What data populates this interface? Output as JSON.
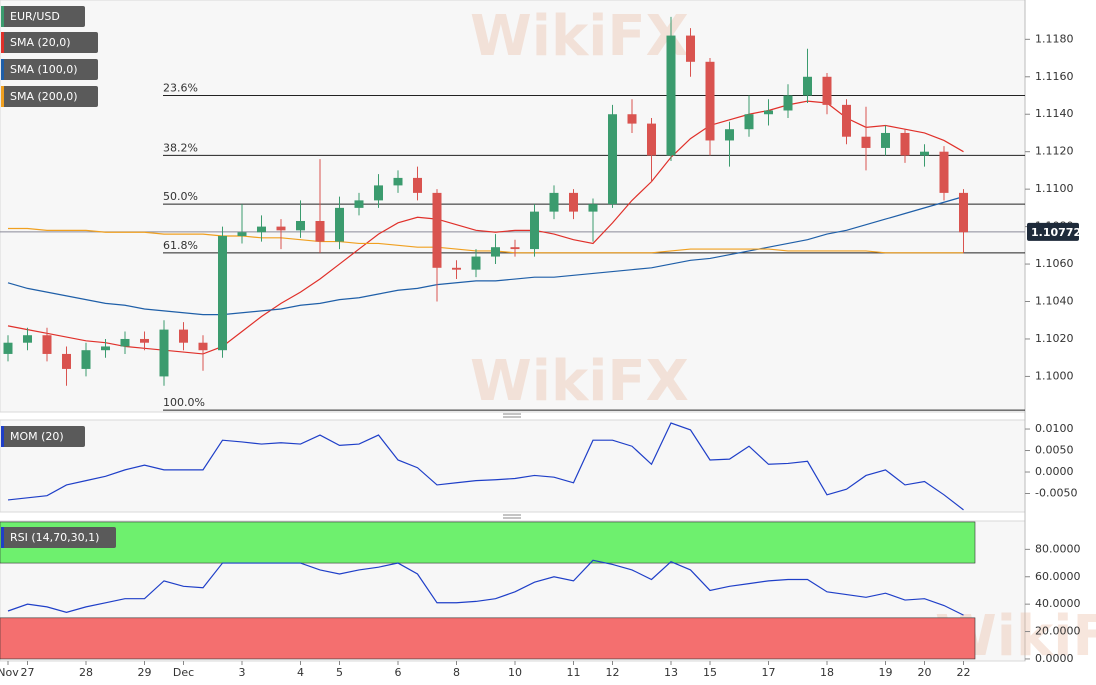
{
  "watermark": "WikiFX",
  "chart_data": [
    {
      "type": "candlestick",
      "symbol": "EUR/USD",
      "up_color": "#3b9b6e",
      "down_color": "#d9534f",
      "categories": [
        "Nov",
        "27",
        null,
        null,
        "28",
        null,
        null,
        "29",
        null,
        "Dec",
        null,
        null,
        "3",
        null,
        null,
        "4",
        null,
        "5",
        null,
        null,
        "6",
        null,
        null,
        "8",
        null,
        null,
        "10",
        null,
        null,
        "11",
        null,
        "12",
        null,
        null,
        "13",
        null,
        "15",
        null,
        null,
        "17",
        null,
        null,
        "18",
        null,
        null,
        "19",
        null,
        "20",
        null,
        "22"
      ],
      "open": [
        1.1012,
        1.1018,
        1.1022,
        1.1012,
        1.1004,
        1.1014,
        1.1016,
        1.102,
        1.1,
        1.1025,
        1.1018,
        1.1014,
        1.1075,
        1.1077,
        1.108,
        1.1078,
        1.1083,
        1.1072,
        1.109,
        1.1094,
        1.1102,
        1.1106,
        1.1098,
        1.1058,
        1.1057,
        1.1064,
        1.1069,
        1.1068,
        1.1088,
        1.1098,
        1.1088,
        1.1092,
        1.114,
        1.1135,
        1.1118,
        1.1182,
        1.1168,
        1.1126,
        1.1132,
        1.114,
        1.1142,
        1.115,
        1.116,
        1.1145,
        1.1128,
        1.1122,
        1.113,
        1.1118,
        1.112,
        1.1098
      ],
      "high": [
        1.1022,
        1.1026,
        1.1026,
        1.1016,
        1.1018,
        1.102,
        1.1024,
        1.1024,
        1.103,
        1.1029,
        1.1022,
        1.108,
        1.1092,
        1.1086,
        1.1084,
        1.1094,
        1.1116,
        1.1096,
        1.1098,
        1.1108,
        1.111,
        1.1112,
        1.11,
        1.1062,
        1.1068,
        1.1076,
        1.1073,
        1.1092,
        1.1102,
        1.11,
        1.1095,
        1.1145,
        1.1148,
        1.1138,
        1.1192,
        1.1186,
        1.117,
        1.1136,
        1.115,
        1.1148,
        1.1156,
        1.1175,
        1.1162,
        1.1148,
        1.1144,
        1.1134,
        1.1132,
        1.1124,
        1.1123,
        1.11
      ],
      "low": [
        1.1008,
        1.1014,
        1.1008,
        1.0995,
        1.1,
        1.101,
        1.1012,
        1.1014,
        1.0995,
        1.1014,
        1.1003,
        1.101,
        1.1071,
        1.1072,
        1.1068,
        1.1074,
        1.1066,
        1.1068,
        1.1086,
        1.109,
        1.1098,
        1.1094,
        1.104,
        1.1052,
        1.1053,
        1.106,
        1.1064,
        1.1064,
        1.1084,
        1.1084,
        1.1072,
        1.109,
        1.113,
        1.1104,
        1.1115,
        1.116,
        1.1118,
        1.1112,
        1.1128,
        1.1134,
        1.1138,
        1.1146,
        1.114,
        1.1124,
        1.111,
        1.1118,
        1.1114,
        1.1112,
        1.1094,
        1.1066
      ],
      "close": [
        1.1018,
        1.1022,
        1.1012,
        1.1004,
        1.1014,
        1.1016,
        1.102,
        1.1018,
        1.1025,
        1.1018,
        1.1014,
        1.1075,
        1.1077,
        1.108,
        1.1078,
        1.1083,
        1.1072,
        1.109,
        1.1094,
        1.1102,
        1.1106,
        1.1098,
        1.1058,
        1.1057,
        1.1064,
        1.1069,
        1.1068,
        1.1088,
        1.1098,
        1.1088,
        1.1092,
        1.114,
        1.1135,
        1.1118,
        1.1182,
        1.1168,
        1.1126,
        1.1132,
        1.114,
        1.1142,
        1.115,
        1.116,
        1.1145,
        1.1128,
        1.1122,
        1.113,
        1.1118,
        1.112,
        1.1098,
        1.1077
      ],
      "series": [
        {
          "name": "SMA (20,0)",
          "color": "#e0302a",
          "values": [
            1.1027,
            1.1025,
            1.1023,
            1.1021,
            1.1019,
            1.1018,
            1.1016,
            1.1015,
            1.1014,
            1.1013,
            1.1012,
            1.1016,
            1.1024,
            1.1032,
            1.1039,
            1.1045,
            1.1052,
            1.106,
            1.1068,
            1.1076,
            1.1082,
            1.1085,
            1.1084,
            1.1081,
            1.1078,
            1.1077,
            1.1078,
            1.1078,
            1.1076,
            1.1073,
            1.1071,
            1.1082,
            1.1094,
            1.1104,
            1.1117,
            1.1127,
            1.1134,
            1.1137,
            1.114,
            1.1142,
            1.1145,
            1.1147,
            1.1146,
            1.1138,
            1.1133,
            1.1134,
            1.1132,
            1.113,
            1.1126,
            1.112
          ]
        },
        {
          "name": "SMA (100,0)",
          "color": "#1f5fa8",
          "values": [
            1.105,
            1.1047,
            1.1045,
            1.1043,
            1.1041,
            1.1039,
            1.1038,
            1.1036,
            1.1035,
            1.1034,
            1.1033,
            1.1033,
            1.1034,
            1.1035,
            1.1036,
            1.1038,
            1.1039,
            1.1041,
            1.1042,
            1.1044,
            1.1046,
            1.1047,
            1.1049,
            1.105,
            1.1051,
            1.1051,
            1.1052,
            1.1053,
            1.1053,
            1.1054,
            1.1055,
            1.1056,
            1.1057,
            1.1058,
            1.106,
            1.1062,
            1.1063,
            1.1065,
            1.1067,
            1.1069,
            1.1071,
            1.1073,
            1.1076,
            1.1078,
            1.1081,
            1.1084,
            1.1087,
            1.109,
            1.1093,
            1.1096
          ]
        },
        {
          "name": "SMA (200,0)",
          "color": "#f0a020",
          "values": [
            1.1079,
            1.1079,
            1.1078,
            1.1078,
            1.1078,
            1.1077,
            1.1077,
            1.1077,
            1.1076,
            1.1076,
            1.1076,
            1.1075,
            1.1075,
            1.1074,
            1.1074,
            1.1073,
            1.1072,
            1.1072,
            1.1071,
            1.1071,
            1.107,
            1.1069,
            1.1069,
            1.1068,
            1.1067,
            1.1067,
            1.1066,
            1.1066,
            1.1066,
            1.1066,
            1.1066,
            1.1066,
            1.1066,
            1.1066,
            1.1067,
            1.1068,
            1.1068,
            1.1068,
            1.1068,
            1.1068,
            1.1067,
            1.1067,
            1.1067,
            1.1067,
            1.1067,
            1.1066,
            1.1066,
            1.1066,
            1.1066,
            1.1066
          ]
        }
      ],
      "ylim": [
        1.0981,
        1.1201
      ],
      "yticks": [
        {
          "value": 1.1,
          "label": "1.1000"
        },
        {
          "value": 1.102,
          "label": "1.1020"
        },
        {
          "value": 1.104,
          "label": "1.1040"
        },
        {
          "value": 1.106,
          "label": "1.1060"
        },
        {
          "value": 1.108,
          "label": "1.1080"
        },
        {
          "value": 1.11,
          "label": "1.1100"
        },
        {
          "value": 1.112,
          "label": "1.1120"
        },
        {
          "value": 1.114,
          "label": "1.1140"
        },
        {
          "value": 1.116,
          "label": "1.1160"
        },
        {
          "value": 1.118,
          "label": "1.1180"
        }
      ],
      "fib_levels": [
        {
          "value": 1.115,
          "label": "23.6%"
        },
        {
          "value": 1.1118,
          "label": "38.2%"
        },
        {
          "value": 1.1092,
          "label": "50.0%"
        },
        {
          "value": 1.1066,
          "label": "61.8%"
        },
        {
          "value": 1.0982,
          "label": "100.0%"
        }
      ],
      "last_price": {
        "value": 1.10772,
        "label": "1.10772"
      }
    },
    {
      "type": "line",
      "series": [
        {
          "name": "MOM (20)",
          "color": "#1f3fc8",
          "values": [
            -0.0065,
            -0.006,
            -0.0055,
            -0.003,
            -0.002,
            -0.001,
            0.0005,
            0.0016,
            0.0005,
            0.0005,
            0.0005,
            0.0074,
            0.007,
            0.0065,
            0.0068,
            0.0065,
            0.0086,
            0.0062,
            0.0065,
            0.0086,
            0.0028,
            0.001,
            -0.003,
            -0.0025,
            -0.002,
            -0.0018,
            -0.0015,
            -0.0008,
            -0.0012,
            -0.0025,
            0.0074,
            0.0074,
            0.006,
            0.0018,
            0.0114,
            0.0098,
            0.0028,
            0.003,
            0.006,
            0.0018,
            0.002,
            0.0025,
            -0.0053,
            -0.004,
            -0.0008,
            0.0005,
            -0.003,
            -0.0022,
            -0.0053,
            -0.0088
          ]
        }
      ],
      "ylim": [
        -0.0093,
        0.0121
      ],
      "yticks": [
        {
          "value": -0.005,
          "label": "-0.0050"
        },
        {
          "value": 0,
          "label": "0.0000"
        },
        {
          "value": 0.005,
          "label": "0.0050"
        },
        {
          "value": 0.01,
          "label": "0.0100"
        }
      ]
    },
    {
      "type": "line",
      "series": [
        {
          "name": "RSI (14,70,30,1)",
          "color": "#1f3fc8",
          "values": [
            35,
            40,
            38,
            34,
            38,
            41,
            44,
            44,
            57,
            53,
            52,
            70,
            70,
            70,
            70,
            70,
            65,
            62,
            65,
            67,
            70,
            62,
            41,
            41,
            42,
            44,
            49,
            56,
            60,
            57,
            72,
            69,
            65,
            58,
            71,
            65,
            50,
            53,
            55,
            57,
            58,
            58,
            49,
            47,
            45,
            48,
            43,
            44,
            39,
            32
          ]
        }
      ],
      "zones": [
        {
          "from": 70,
          "to": 100,
          "color": "#6ef06e"
        },
        {
          "from": 0,
          "to": 30,
          "color": "#f46f6f"
        }
      ],
      "ylim": [
        -1.5,
        100.7
      ],
      "yticks": [
        {
          "value": 0,
          "label": "0.0000"
        },
        {
          "value": 20,
          "label": "20.0000"
        },
        {
          "value": 40,
          "label": "40.0000"
        },
        {
          "value": 60,
          "label": "60.0000"
        },
        {
          "value": 80,
          "label": "80.0000"
        }
      ]
    }
  ]
}
